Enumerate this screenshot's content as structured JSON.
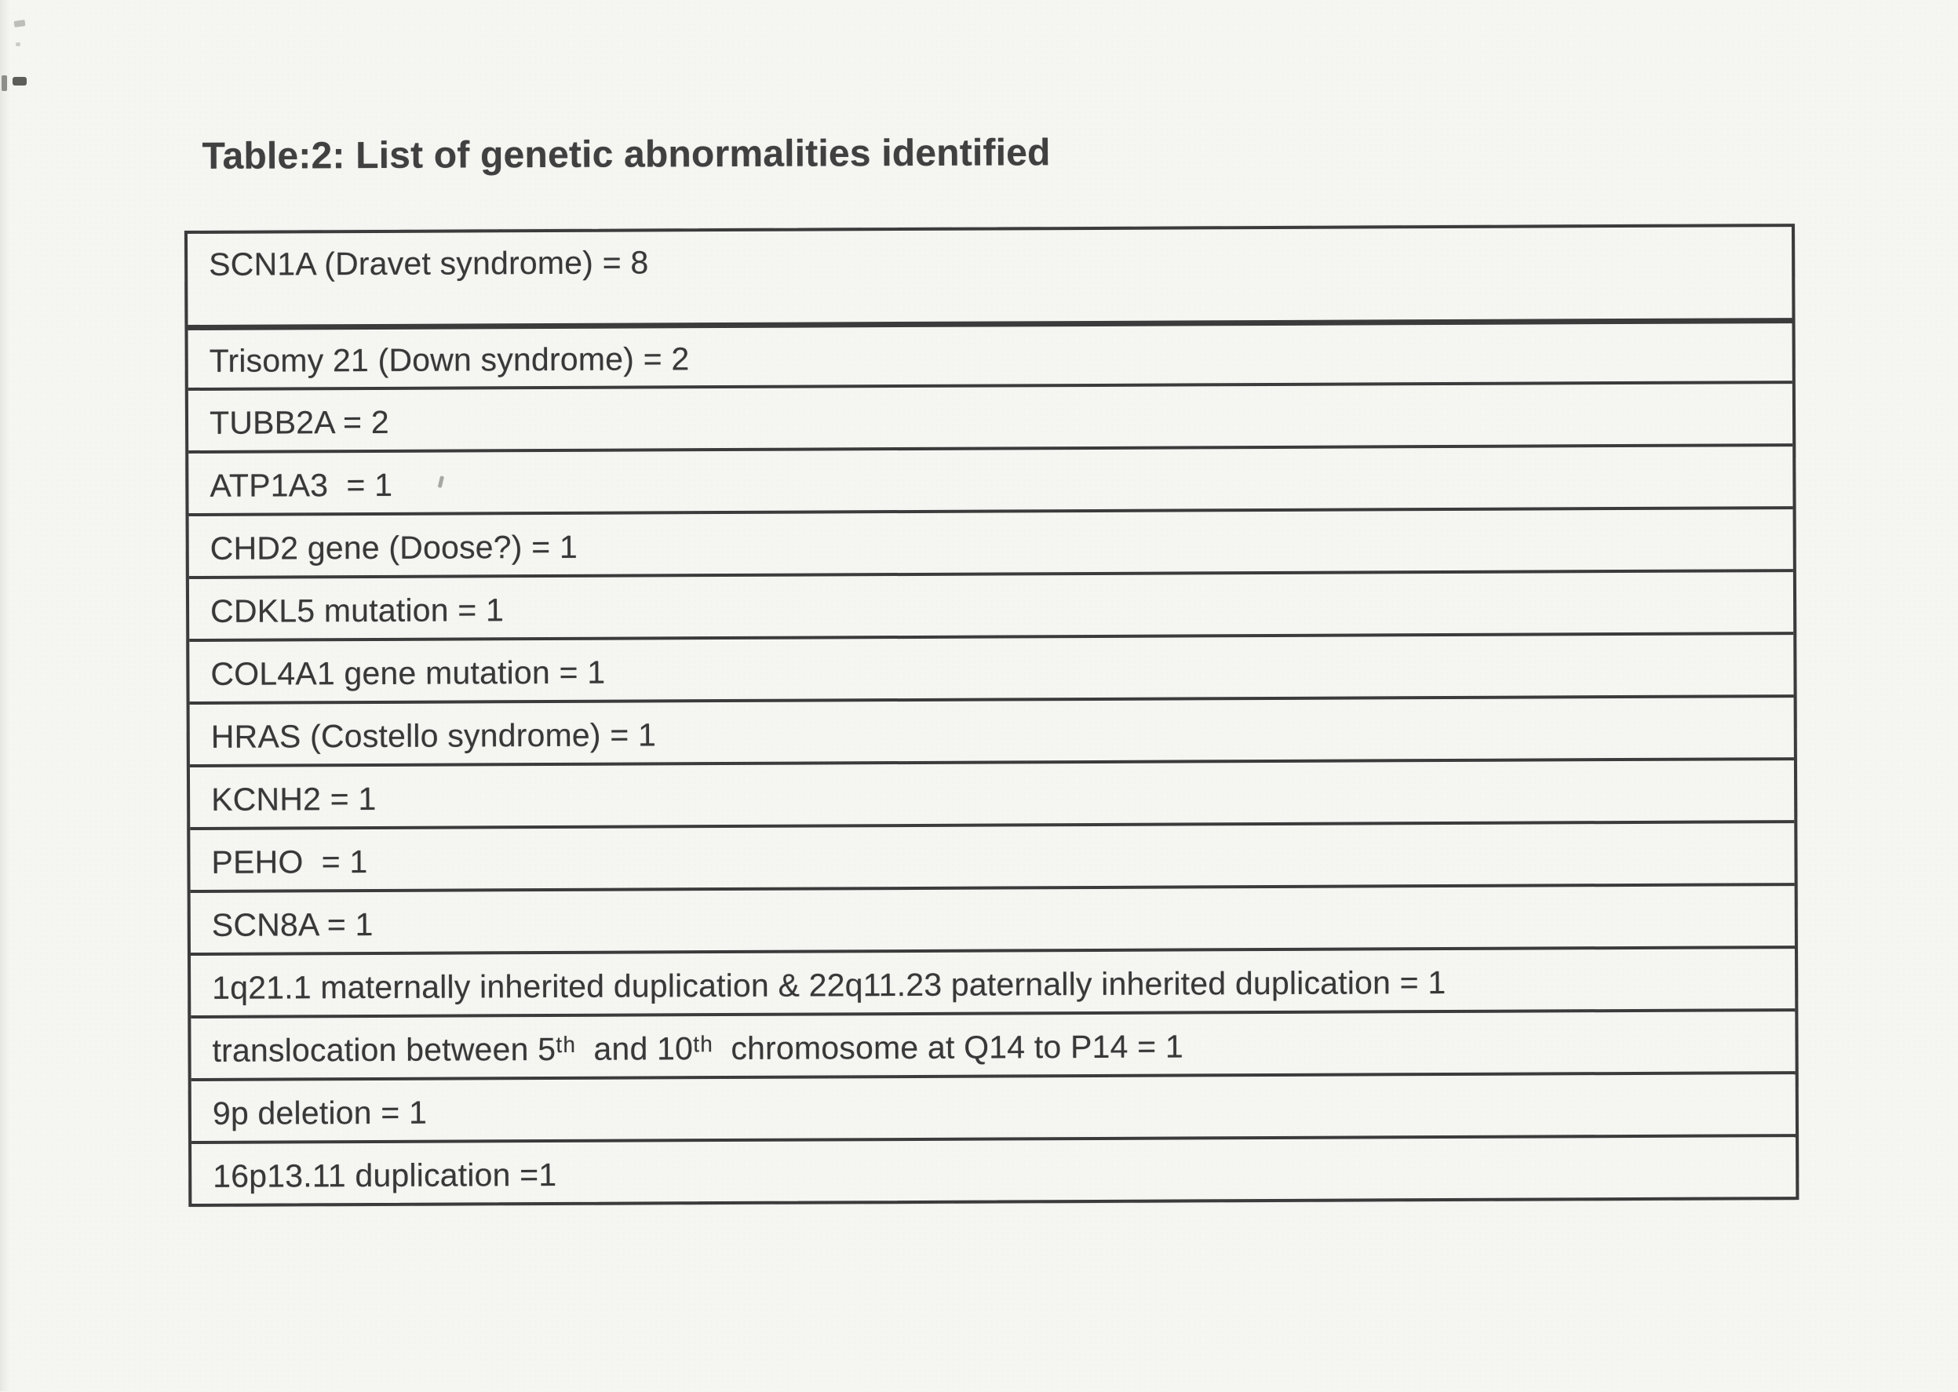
{
  "page": {
    "title": "Table:2: List of genetic abnormalities identified"
  },
  "table": {
    "rows": [
      "SCN1A (Dravet syndrome) = 8",
      "Trisomy 21 (Down syndrome) = 2",
      "TUBB2A = 2",
      "ATP1A3  = 1",
      "CHD2 gene (Doose?) = 1",
      "CDKL5 mutation = 1",
      "COL4A1 gene mutation = 1",
      "HRAS (Costello syndrome) = 1",
      "KCNH2 = 1",
      "PEHO  = 1",
      "SCN8A = 1",
      "1q21.1 maternally inherited duplication & 22q11.23 paternally inherited duplication = 1",
      "translocation between 5ᵗʰ  and 10ᵗʰ  chromosome at Q14 to P14 = 1",
      "9p deletion = 1",
      "16p13.11 duplication =1"
    ]
  }
}
